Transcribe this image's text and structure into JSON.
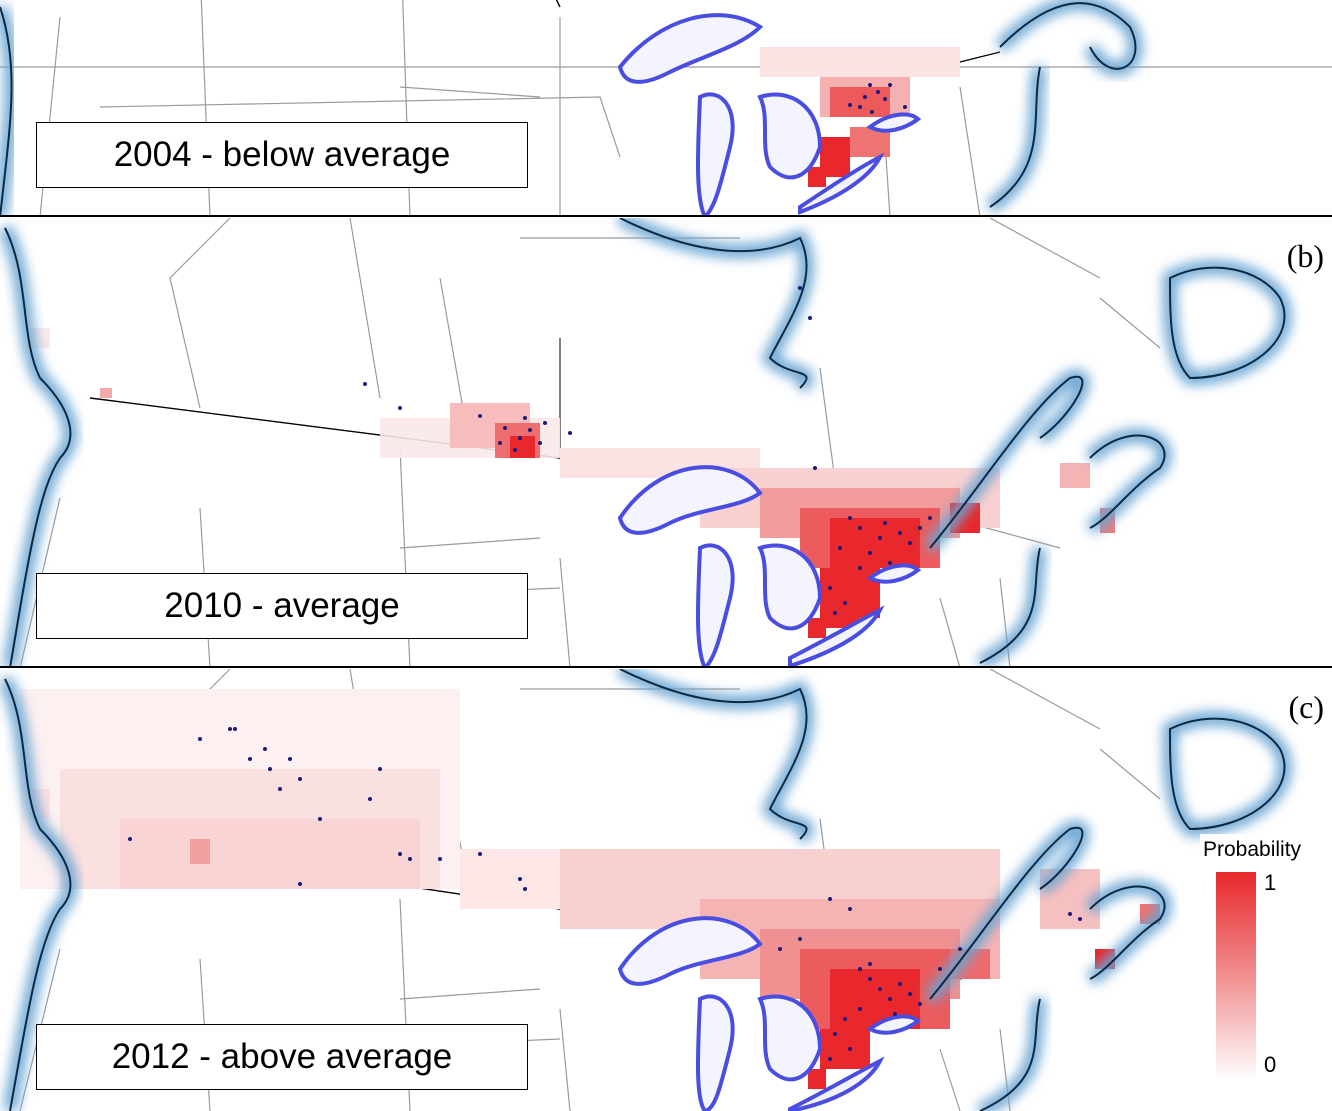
{
  "panels": [
    {
      "id": "a",
      "letter": "",
      "label": "2004 - below average"
    },
    {
      "id": "b",
      "letter": "(b)",
      "label": "2010 - average"
    },
    {
      "id": "c",
      "letter": "(c)",
      "label": "2012 - above average"
    }
  ],
  "legend": {
    "title": "Probability",
    "max_label": "1",
    "min_label": "0",
    "color_high": "#e8282c",
    "color_low": "#ffffff"
  },
  "colors": {
    "water_halo": "#6aa5d3",
    "lake_fill": "#f4f4ff",
    "lake_halo": "#4a4ee0",
    "border": "#9a9a9a",
    "point": "#1a1a7a"
  }
}
